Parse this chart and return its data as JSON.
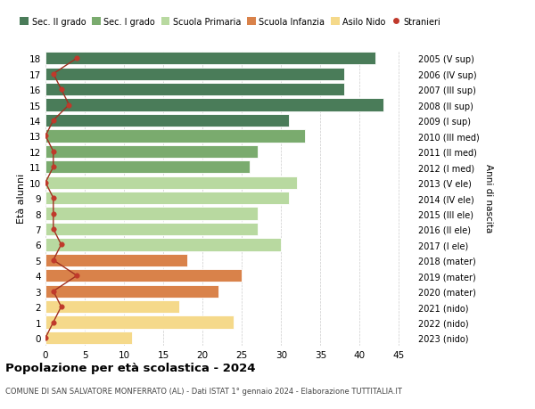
{
  "ages": [
    18,
    17,
    16,
    15,
    14,
    13,
    12,
    11,
    10,
    9,
    8,
    7,
    6,
    5,
    4,
    3,
    2,
    1,
    0
  ],
  "bar_values": [
    42,
    38,
    38,
    43,
    31,
    33,
    27,
    26,
    32,
    31,
    27,
    27,
    30,
    18,
    25,
    22,
    17,
    24,
    11
  ],
  "bar_colors": [
    "#4a7c59",
    "#4a7c59",
    "#4a7c59",
    "#4a7c59",
    "#4a7c59",
    "#7aab6e",
    "#7aab6e",
    "#7aab6e",
    "#b8d9a0",
    "#b8d9a0",
    "#b8d9a0",
    "#b8d9a0",
    "#b8d9a0",
    "#d9824a",
    "#d9824a",
    "#d9824a",
    "#f5d98a",
    "#f5d98a",
    "#f5d98a"
  ],
  "right_labels": [
    "2005 (V sup)",
    "2006 (IV sup)",
    "2007 (III sup)",
    "2008 (II sup)",
    "2009 (I sup)",
    "2010 (III med)",
    "2011 (II med)",
    "2012 (I med)",
    "2013 (V ele)",
    "2014 (IV ele)",
    "2015 (III ele)",
    "2016 (II ele)",
    "2017 (I ele)",
    "2018 (mater)",
    "2019 (mater)",
    "2020 (mater)",
    "2021 (nido)",
    "2022 (nido)",
    "2023 (nido)"
  ],
  "stranieri_values": [
    4,
    1,
    2,
    3,
    1,
    0,
    1,
    1,
    0,
    1,
    1,
    1,
    2,
    1,
    4,
    1,
    2,
    1,
    0
  ],
  "legend_labels": [
    "Sec. II grado",
    "Sec. I grado",
    "Scuola Primaria",
    "Scuola Infanzia",
    "Asilo Nido",
    "Stranieri"
  ],
  "legend_colors": [
    "#4a7c59",
    "#7aab6e",
    "#b8d9a0",
    "#d9824a",
    "#f5d98a",
    "#c0392b"
  ],
  "xlabel_ticks": [
    0,
    5,
    10,
    15,
    20,
    25,
    30,
    35,
    40,
    45
  ],
  "ylabel_left": "Età alunni",
  "ylabel_right": "Anni di nascita",
  "title": "Popolazione per età scolastica - 2024",
  "subtitle": "COMUNE DI SAN SALVATORE MONFERRATO (AL) - Dati ISTAT 1° gennaio 2024 - Elaborazione TUTTITALIA.IT",
  "background_color": "#ffffff",
  "grid_color": "#cccccc"
}
